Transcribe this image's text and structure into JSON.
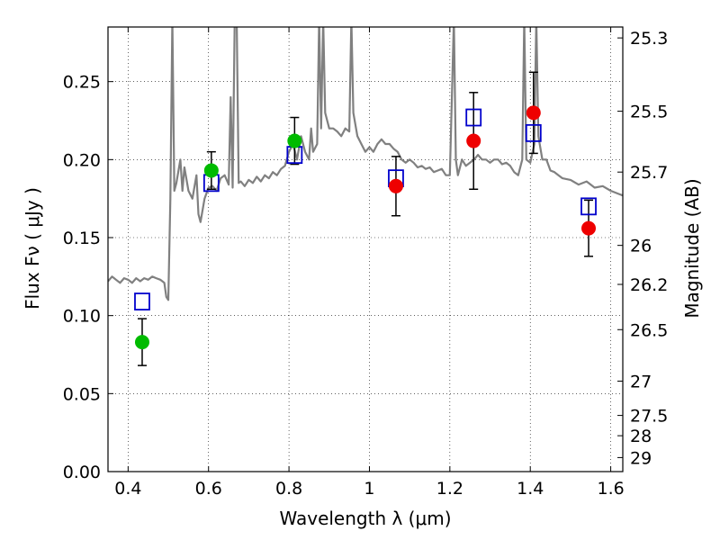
{
  "chart_data": {
    "type": "scatter",
    "xlabel": "Wavelength  λ (μm)",
    "ylabel": "Flux  Fν  ( μJy )",
    "ylabel_right": "Magnitude (AB)",
    "xlim": [
      0.35,
      1.63
    ],
    "ylim": [
      0.0,
      0.285
    ],
    "grid": true,
    "grid_style": "dotted",
    "x_ticks": [
      0.4,
      0.6,
      0.8,
      1.0,
      1.2,
      1.4,
      1.6
    ],
    "x_tick_labels": [
      "0.4",
      "0.6",
      "0.8",
      "1",
      "1.2",
      "1.4",
      "1.6"
    ],
    "y_ticks": [
      0.0,
      0.05,
      0.1,
      0.15,
      0.2,
      0.25
    ],
    "y_tick_labels": [
      "0.00",
      "0.05",
      "0.10",
      "0.15",
      "0.20",
      "0.25"
    ],
    "right_axis_ticks": [
      {
        "flux": 0.278,
        "label": "25.3"
      },
      {
        "flux": 0.231,
        "label": "25.5"
      },
      {
        "flux": 0.192,
        "label": "25.7"
      },
      {
        "flux": 0.145,
        "label": "26"
      },
      {
        "flux": 0.12,
        "label": "26.2"
      },
      {
        "flux": 0.091,
        "label": "26.5"
      },
      {
        "flux": 0.058,
        "label": "27"
      },
      {
        "flux": 0.036,
        "label": "27.5"
      },
      {
        "flux": 0.023,
        "label": "28"
      },
      {
        "flux": 0.009,
        "label": "29"
      }
    ],
    "series": [
      {
        "kind": "line",
        "color": "#808080",
        "points": [
          [
            0.35,
            0.122
          ],
          [
            0.36,
            0.125
          ],
          [
            0.37,
            0.123
          ],
          [
            0.38,
            0.121
          ],
          [
            0.39,
            0.124
          ],
          [
            0.4,
            0.123
          ],
          [
            0.41,
            0.121
          ],
          [
            0.42,
            0.124
          ],
          [
            0.43,
            0.122
          ],
          [
            0.44,
            0.124
          ],
          [
            0.45,
            0.123
          ],
          [
            0.46,
            0.125
          ],
          [
            0.47,
            0.124
          ],
          [
            0.48,
            0.123
          ],
          [
            0.49,
            0.121
          ],
          [
            0.495,
            0.112
          ],
          [
            0.5,
            0.11
          ],
          [
            0.505,
            0.175
          ],
          [
            0.51,
            0.29
          ],
          [
            0.515,
            0.18
          ],
          [
            0.52,
            0.185
          ],
          [
            0.53,
            0.2
          ],
          [
            0.535,
            0.18
          ],
          [
            0.54,
            0.195
          ],
          [
            0.55,
            0.18
          ],
          [
            0.56,
            0.175
          ],
          [
            0.57,
            0.19
          ],
          [
            0.575,
            0.165
          ],
          [
            0.58,
            0.16
          ],
          [
            0.59,
            0.175
          ],
          [
            0.6,
            0.182
          ],
          [
            0.61,
            0.183
          ],
          [
            0.62,
            0.18
          ],
          [
            0.63,
            0.188
          ],
          [
            0.64,
            0.19
          ],
          [
            0.65,
            0.184
          ],
          [
            0.655,
            0.24
          ],
          [
            0.66,
            0.182
          ],
          [
            0.665,
            0.29
          ],
          [
            0.67,
            0.29
          ],
          [
            0.675,
            0.185
          ],
          [
            0.68,
            0.186
          ],
          [
            0.69,
            0.183
          ],
          [
            0.7,
            0.187
          ],
          [
            0.71,
            0.185
          ],
          [
            0.72,
            0.189
          ],
          [
            0.73,
            0.186
          ],
          [
            0.74,
            0.19
          ],
          [
            0.75,
            0.188
          ],
          [
            0.76,
            0.192
          ],
          [
            0.77,
            0.19
          ],
          [
            0.78,
            0.194
          ],
          [
            0.79,
            0.196
          ],
          [
            0.8,
            0.205
          ],
          [
            0.81,
            0.21
          ],
          [
            0.82,
            0.2
          ],
          [
            0.83,
            0.215
          ],
          [
            0.84,
            0.205
          ],
          [
            0.85,
            0.2
          ],
          [
            0.855,
            0.22
          ],
          [
            0.86,
            0.205
          ],
          [
            0.87,
            0.21
          ],
          [
            0.875,
            0.29
          ],
          [
            0.88,
            0.22
          ],
          [
            0.885,
            0.29
          ],
          [
            0.89,
            0.23
          ],
          [
            0.9,
            0.22
          ],
          [
            0.91,
            0.22
          ],
          [
            0.92,
            0.218
          ],
          [
            0.93,
            0.215
          ],
          [
            0.94,
            0.22
          ],
          [
            0.95,
            0.218
          ],
          [
            0.955,
            0.29
          ],
          [
            0.96,
            0.23
          ],
          [
            0.97,
            0.215
          ],
          [
            0.98,
            0.21
          ],
          [
            0.99,
            0.205
          ],
          [
            1.0,
            0.208
          ],
          [
            1.01,
            0.205
          ],
          [
            1.02,
            0.21
          ],
          [
            1.03,
            0.213
          ],
          [
            1.04,
            0.21
          ],
          [
            1.05,
            0.21
          ],
          [
            1.06,
            0.207
          ],
          [
            1.07,
            0.205
          ],
          [
            1.08,
            0.2
          ],
          [
            1.09,
            0.198
          ],
          [
            1.1,
            0.2
          ],
          [
            1.11,
            0.198
          ],
          [
            1.12,
            0.195
          ],
          [
            1.13,
            0.196
          ],
          [
            1.14,
            0.194
          ],
          [
            1.15,
            0.195
          ],
          [
            1.16,
            0.192
          ],
          [
            1.17,
            0.193
          ],
          [
            1.18,
            0.194
          ],
          [
            1.19,
            0.19
          ],
          [
            1.2,
            0.19
          ],
          [
            1.205,
            0.24
          ],
          [
            1.21,
            0.29
          ],
          [
            1.215,
            0.2
          ],
          [
            1.22,
            0.19
          ],
          [
            1.23,
            0.2
          ],
          [
            1.24,
            0.196
          ],
          [
            1.25,
            0.198
          ],
          [
            1.26,
            0.2
          ],
          [
            1.27,
            0.203
          ],
          [
            1.28,
            0.2
          ],
          [
            1.29,
            0.2
          ],
          [
            1.3,
            0.198
          ],
          [
            1.31,
            0.2
          ],
          [
            1.32,
            0.2
          ],
          [
            1.33,
            0.197
          ],
          [
            1.34,
            0.198
          ],
          [
            1.35,
            0.196
          ],
          [
            1.36,
            0.192
          ],
          [
            1.37,
            0.19
          ],
          [
            1.38,
            0.2
          ],
          [
            1.385,
            0.29
          ],
          [
            1.39,
            0.2
          ],
          [
            1.4,
            0.198
          ],
          [
            1.41,
            0.21
          ],
          [
            1.415,
            0.29
          ],
          [
            1.42,
            0.215
          ],
          [
            1.43,
            0.2
          ],
          [
            1.44,
            0.2
          ],
          [
            1.45,
            0.193
          ],
          [
            1.46,
            0.192
          ],
          [
            1.47,
            0.19
          ],
          [
            1.48,
            0.188
          ],
          [
            1.5,
            0.187
          ],
          [
            1.52,
            0.184
          ],
          [
            1.54,
            0.186
          ],
          [
            1.56,
            0.182
          ],
          [
            1.58,
            0.183
          ],
          [
            1.6,
            0.18
          ],
          [
            1.62,
            0.178
          ],
          [
            1.63,
            0.177
          ]
        ]
      },
      {
        "kind": "points",
        "marker": "circle",
        "color": "#00bb00",
        "x": [
          0.435,
          0.607,
          0.814
        ],
        "y": [
          0.083,
          0.193,
          0.212
        ],
        "yerr": [
          0.015,
          0.012,
          0.015
        ]
      },
      {
        "kind": "points",
        "marker": "circle",
        "color": "#ee0000",
        "x": [
          1.066,
          1.259,
          1.408,
          1.545
        ],
        "y": [
          0.183,
          0.212,
          0.23,
          0.156
        ],
        "yerr": [
          0.019,
          0.031,
          0.026,
          0.018
        ]
      },
      {
        "kind": "points",
        "marker": "square-open",
        "color": "#0000cc",
        "x": [
          0.435,
          0.607,
          0.814,
          1.066,
          1.259,
          1.408,
          1.545
        ],
        "y": [
          0.109,
          0.185,
          0.203,
          0.188,
          0.227,
          0.217,
          0.17
        ]
      }
    ]
  }
}
